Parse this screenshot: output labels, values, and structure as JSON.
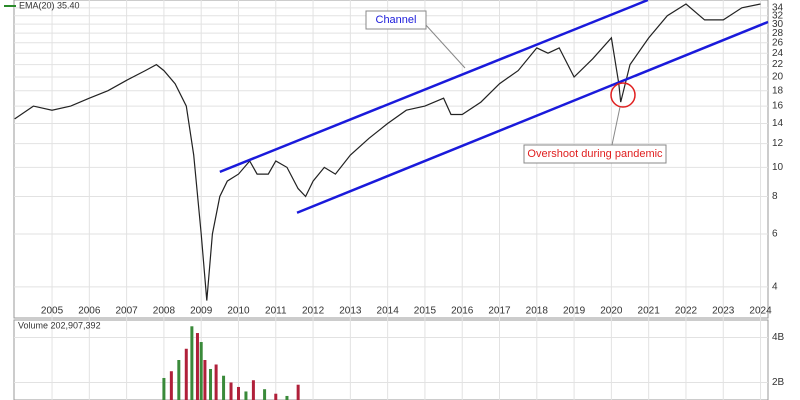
{
  "chart_data": [
    {
      "type": "line",
      "legend_text": "EMA(20) 35.40",
      "color": "#222",
      "log_scale": true,
      "grid": true,
      "x": [
        2004.0,
        2004.5,
        2005.0,
        2005.5,
        2006.0,
        2006.5,
        2007.0,
        2007.5,
        2007.8,
        2008.0,
        2008.3,
        2008.6,
        2008.8,
        2009.0,
        2009.15,
        2009.3,
        2009.5,
        2009.7,
        2010.0,
        2010.3,
        2010.5,
        2010.8,
        2011.0,
        2011.3,
        2011.6,
        2011.8,
        2012.0,
        2012.3,
        2012.6,
        2013.0,
        2013.5,
        2014.0,
        2014.5,
        2015.0,
        2015.5,
        2015.7,
        2016.0,
        2016.5,
        2017.0,
        2017.5,
        2018.0,
        2018.3,
        2018.6,
        2019.0,
        2019.5,
        2020.0,
        2020.2,
        2020.25,
        2020.5,
        2021.0,
        2021.5,
        2022.0,
        2022.5,
        2023.0,
        2023.5,
        2024.0
      ],
      "values": [
        14.5,
        16,
        15.5,
        16,
        17,
        18,
        19.5,
        21,
        22,
        21,
        19,
        16,
        11,
        6,
        3.6,
        6,
        8,
        9,
        9.5,
        10.5,
        9.5,
        9.5,
        10.5,
        10,
        8.5,
        8,
        9,
        10,
        9.5,
        11,
        12.5,
        14,
        15.5,
        16,
        17,
        15,
        15,
        16.5,
        19,
        21,
        25,
        24,
        25,
        20,
        23,
        27,
        19,
        16.5,
        22,
        27,
        32,
        35,
        31,
        31,
        34,
        35
      ],
      "trendlines": [
        {
          "x": [
            2009.5,
            2020.98
          ],
          "values": [
            9.66,
            36.1
          ]
        },
        {
          "x": [
            2011.57,
            2024.2
          ],
          "values": [
            7.06,
            30.5
          ]
        }
      ],
      "trendline_color": "#1a1adb",
      "annotations": [
        {
          "text": "Channel",
          "color": "#1a1adb"
        },
        {
          "text": "Overshoot during pandemic",
          "color": "#e02020"
        }
      ],
      "xlim": [
        2003.98,
        2024.2
      ],
      "xticks": [
        2005,
        2006,
        2007,
        2008,
        2009,
        2010,
        2011,
        2012,
        2013,
        2014,
        2015,
        2016,
        2017,
        2018,
        2019,
        2020,
        2021,
        2022,
        2023,
        2024
      ],
      "ylim": [
        3.15,
        36.1
      ],
      "yticks": [
        4,
        6,
        8,
        10,
        12,
        14,
        16,
        18,
        20,
        22,
        24,
        26,
        28,
        30,
        32,
        34
      ]
    },
    {
      "type": "bar",
      "title": "Volume 202,907,392",
      "grid": true,
      "x": [
        2008.0,
        2008.2,
        2008.4,
        2008.6,
        2008.75,
        2008.9,
        2009.0,
        2009.1,
        2009.25,
        2009.4,
        2009.6,
        2009.8,
        2010.0,
        2010.2,
        2010.4,
        2010.7,
        2011.0,
        2011.3,
        2011.6
      ],
      "values": [
        2.2,
        2.5,
        3.0,
        3.5,
        4.5,
        4.2,
        3.8,
        3.0,
        2.6,
        2.8,
        2.3,
        2.0,
        1.8,
        1.6,
        2.1,
        1.7,
        1.5,
        1.4,
        1.9
      ],
      "colors": [
        "#3a8a3a",
        "#b0203a",
        "#3a8a3a",
        "#b0203a",
        "#3a8a3a",
        "#b0203a",
        "#3a8a3a",
        "#b0203a",
        "#3a8a3a",
        "#b0203a",
        "#3a8a3a",
        "#b0203a",
        "#b0203a",
        "#3a8a3a",
        "#b0203a",
        "#3a8a3a",
        "#b0203a",
        "#3a8a3a",
        "#b0203a"
      ],
      "xlim": [
        2003.98,
        2024.2
      ],
      "ylim": [
        1.22,
        4.78
      ],
      "yticks": [
        {
          "value": 2,
          "label": "2B"
        },
        {
          "value": 4,
          "label": "4B"
        }
      ]
    }
  ]
}
